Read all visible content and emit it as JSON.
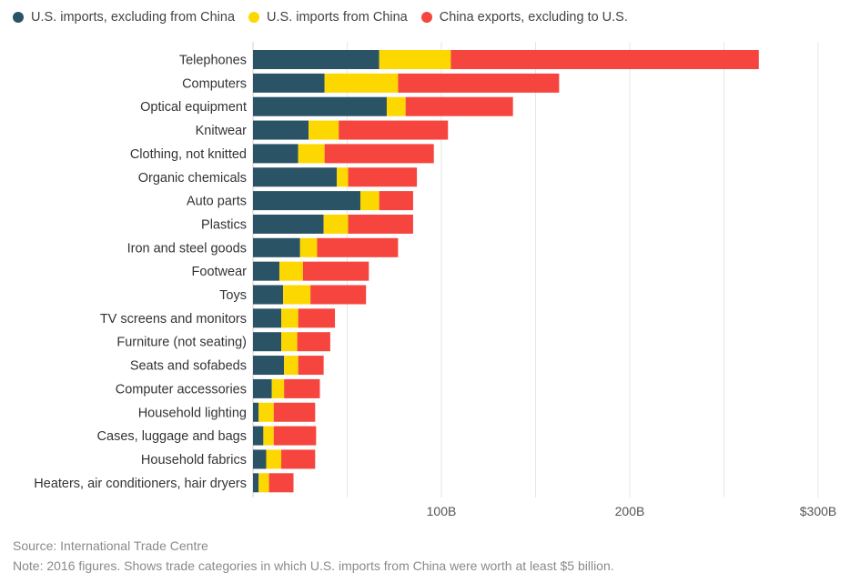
{
  "chart_data": {
    "type": "bar",
    "orientation": "horizontal",
    "stacked": true,
    "categories": [
      "Telephones",
      "Computers",
      "Optical equipment",
      "Knitwear",
      "Clothing, not knitted",
      "Organic chemicals",
      "Auto parts",
      "Plastics",
      "Iron and steel goods",
      "Footwear",
      "Toys",
      "TV screens and monitors",
      "Furniture (not seating)",
      "Seats and sofabeds",
      "Computer accessories",
      "Household lighting",
      "Cases, luggage and bags",
      "Household fabrics",
      "Heaters, air conditioners, hair dryers"
    ],
    "series": [
      {
        "name": "U.S. imports, excluding from China",
        "color": "#2a5366",
        "values": [
          67,
          38,
          71,
          29.5,
          24,
          44.5,
          57,
          37.5,
          25,
          14,
          16,
          15,
          15,
          16.5,
          10,
          3,
          5.5,
          7,
          3
        ]
      },
      {
        "name": "U.S. imports from China",
        "color": "#fdd800",
        "values": [
          38,
          39,
          10,
          16,
          14,
          6,
          10,
          13,
          9,
          12.5,
          14.5,
          9,
          8.5,
          7.5,
          6.5,
          8,
          5.5,
          8,
          5.5
        ]
      },
      {
        "name": "China exports, excluding to U.S.",
        "color": "#f5453e",
        "values": [
          163.5,
          85.5,
          57,
          58,
          58,
          36.5,
          18,
          34.5,
          43,
          35,
          29.5,
          19.5,
          17.5,
          13.5,
          19,
          22,
          22.5,
          18,
          13
        ]
      }
    ],
    "x_ticks": [
      "100B",
      "200B",
      "$300B"
    ],
    "x_tick_values": [
      100,
      200,
      300
    ],
    "xlim": [
      0,
      300
    ],
    "grid": true,
    "legend_position": "top-left"
  },
  "source": "Source: International Trade Centre",
  "note": "Note: 2016 figures. Shows trade categories in which U.S. imports from China were worth at least $5 billion."
}
